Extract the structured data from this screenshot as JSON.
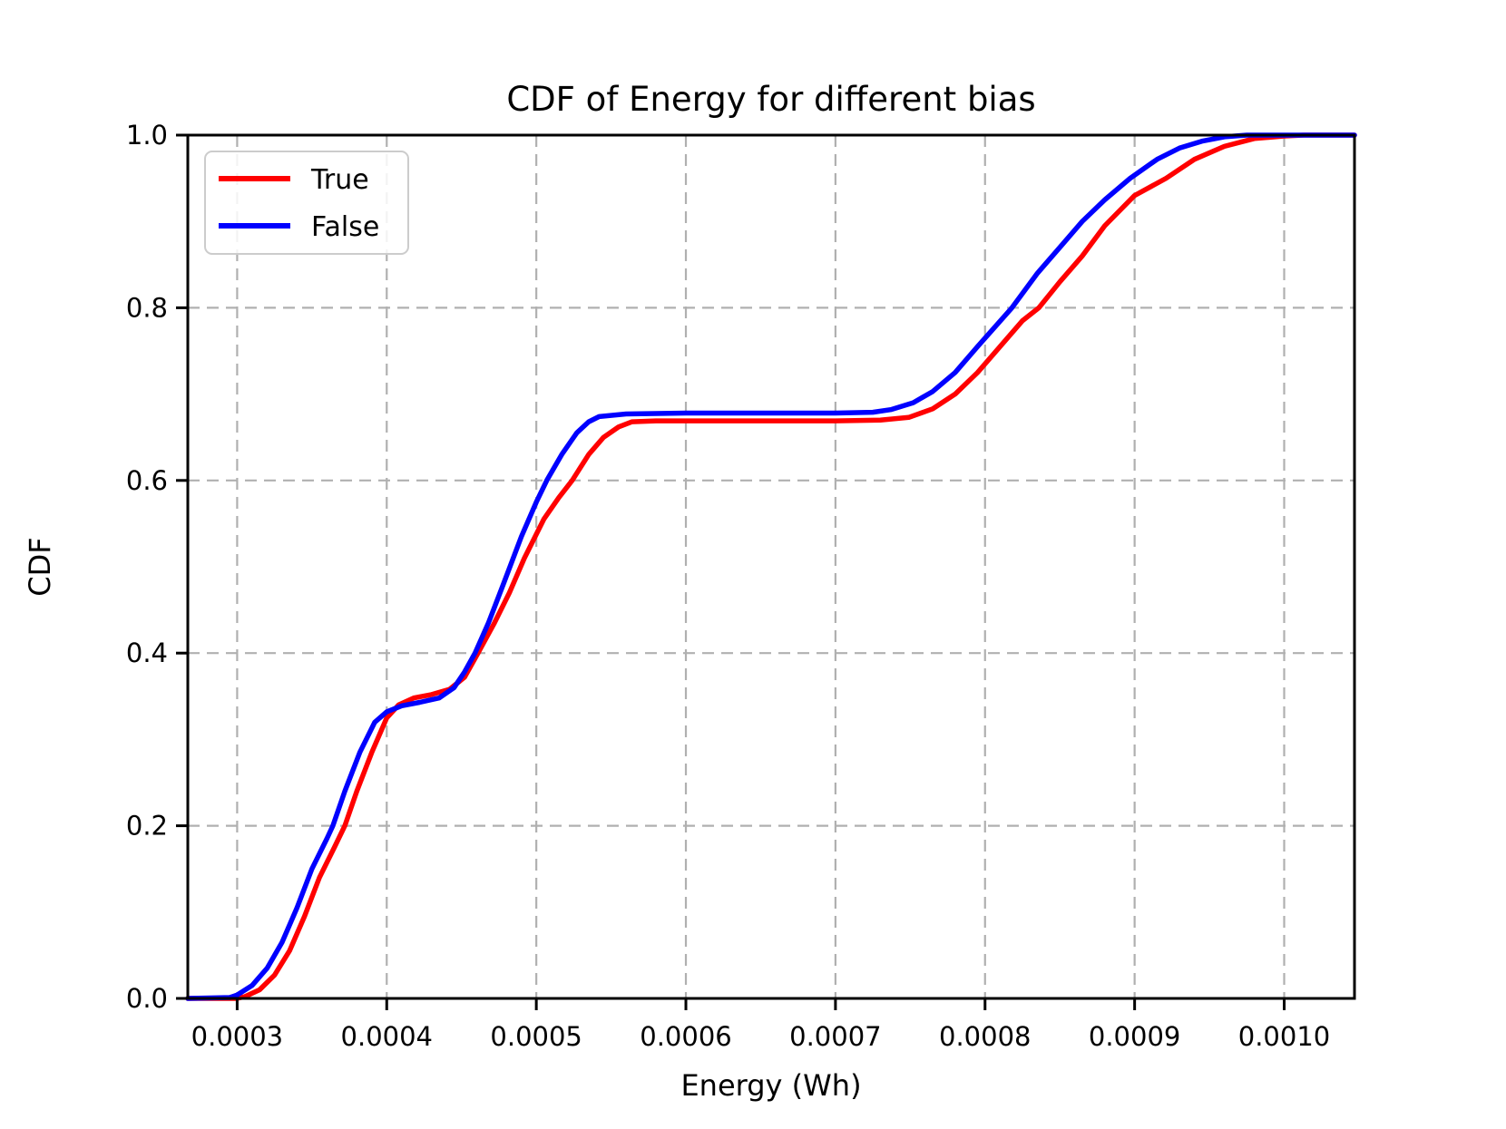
{
  "figure": {
    "background": "#ffffff"
  },
  "chart_data": {
    "type": "line",
    "title": "CDF of Energy for different bias",
    "xlabel": "Energy (Wh)",
    "ylabel": "CDF",
    "xlim": [
      0.000267,
      0.001047
    ],
    "ylim": [
      0.0,
      1.0
    ],
    "xticks": [
      0.0003,
      0.0004,
      0.0005,
      0.0006,
      0.0007,
      0.0008,
      0.0009,
      0.001
    ],
    "yticks": [
      0.0,
      0.2,
      0.4,
      0.6,
      0.8,
      1.0
    ],
    "grid": true,
    "grid_color": "#b0b0b0",
    "axis_color": "#000000",
    "legend": {
      "position": "upper-left",
      "entries": [
        "True",
        "False"
      ]
    },
    "series": [
      {
        "name": "True",
        "color": "#ff0000",
        "points": [
          [
            0.000267,
            0.0
          ],
          [
            0.0003,
            0.0
          ],
          [
            0.000305,
            0.002
          ],
          [
            0.000315,
            0.01
          ],
          [
            0.000325,
            0.027
          ],
          [
            0.000335,
            0.055
          ],
          [
            0.000345,
            0.095
          ],
          [
            0.000355,
            0.14
          ],
          [
            0.000365,
            0.175
          ],
          [
            0.000372,
            0.2
          ],
          [
            0.00038,
            0.24
          ],
          [
            0.00039,
            0.285
          ],
          [
            0.0004,
            0.325
          ],
          [
            0.000408,
            0.34
          ],
          [
            0.000418,
            0.348
          ],
          [
            0.00043,
            0.352
          ],
          [
            0.000442,
            0.358
          ],
          [
            0.000452,
            0.372
          ],
          [
            0.000461,
            0.4
          ],
          [
            0.000472,
            0.435
          ],
          [
            0.000482,
            0.47
          ],
          [
            0.000492,
            0.51
          ],
          [
            0.000505,
            0.555
          ],
          [
            0.000515,
            0.58
          ],
          [
            0.000524,
            0.6
          ],
          [
            0.000535,
            0.63
          ],
          [
            0.000545,
            0.65
          ],
          [
            0.000555,
            0.662
          ],
          [
            0.000564,
            0.668
          ],
          [
            0.00058,
            0.669
          ],
          [
            0.00062,
            0.669
          ],
          [
            0.00066,
            0.669
          ],
          [
            0.0007,
            0.669
          ],
          [
            0.00073,
            0.67
          ],
          [
            0.000749,
            0.673
          ],
          [
            0.000765,
            0.683
          ],
          [
            0.00078,
            0.7
          ],
          [
            0.000795,
            0.725
          ],
          [
            0.00081,
            0.755
          ],
          [
            0.000825,
            0.785
          ],
          [
            0.000836,
            0.8
          ],
          [
            0.00085,
            0.83
          ],
          [
            0.000865,
            0.86
          ],
          [
            0.00088,
            0.895
          ],
          [
            0.0009,
            0.93
          ],
          [
            0.000921,
            0.95
          ],
          [
            0.00094,
            0.972
          ],
          [
            0.00096,
            0.987
          ],
          [
            0.00098,
            0.996
          ],
          [
            0.001,
            0.999
          ],
          [
            0.001013,
            1.0
          ],
          [
            0.001047,
            1.0
          ]
        ]
      },
      {
        "name": "False",
        "color": "#0000ff",
        "points": [
          [
            0.000267,
            0.0
          ],
          [
            0.000295,
            0.001
          ],
          [
            0.0003,
            0.004
          ],
          [
            0.00031,
            0.015
          ],
          [
            0.00032,
            0.035
          ],
          [
            0.00033,
            0.065
          ],
          [
            0.00034,
            0.105
          ],
          [
            0.00035,
            0.15
          ],
          [
            0.00036,
            0.185
          ],
          [
            0.000364,
            0.2
          ],
          [
            0.000372,
            0.24
          ],
          [
            0.000382,
            0.285
          ],
          [
            0.000392,
            0.32
          ],
          [
            0.0004,
            0.332
          ],
          [
            0.00041,
            0.339
          ],
          [
            0.000422,
            0.343
          ],
          [
            0.000435,
            0.348
          ],
          [
            0.000445,
            0.36
          ],
          [
            0.000452,
            0.378
          ],
          [
            0.000459,
            0.4
          ],
          [
            0.000468,
            0.435
          ],
          [
            0.000478,
            0.48
          ],
          [
            0.00049,
            0.535
          ],
          [
            0.0005,
            0.575
          ],
          [
            0.000507,
            0.6
          ],
          [
            0.000517,
            0.63
          ],
          [
            0.000527,
            0.655
          ],
          [
            0.000535,
            0.668
          ],
          [
            0.000542,
            0.674
          ],
          [
            0.00056,
            0.677
          ],
          [
            0.0006,
            0.678
          ],
          [
            0.00065,
            0.678
          ],
          [
            0.0007,
            0.678
          ],
          [
            0.000725,
            0.679
          ],
          [
            0.000737,
            0.682
          ],
          [
            0.000752,
            0.69
          ],
          [
            0.000765,
            0.703
          ],
          [
            0.00078,
            0.725
          ],
          [
            0.000795,
            0.755
          ],
          [
            0.000818,
            0.8
          ],
          [
            0.000835,
            0.84
          ],
          [
            0.00085,
            0.87
          ],
          [
            0.000865,
            0.9
          ],
          [
            0.00088,
            0.925
          ],
          [
            0.000897,
            0.95
          ],
          [
            0.000915,
            0.972
          ],
          [
            0.00093,
            0.985
          ],
          [
            0.000945,
            0.993
          ],
          [
            0.00096,
            0.998
          ],
          [
            0.000975,
            1.0
          ],
          [
            0.001047,
            1.0
          ]
        ]
      }
    ]
  }
}
